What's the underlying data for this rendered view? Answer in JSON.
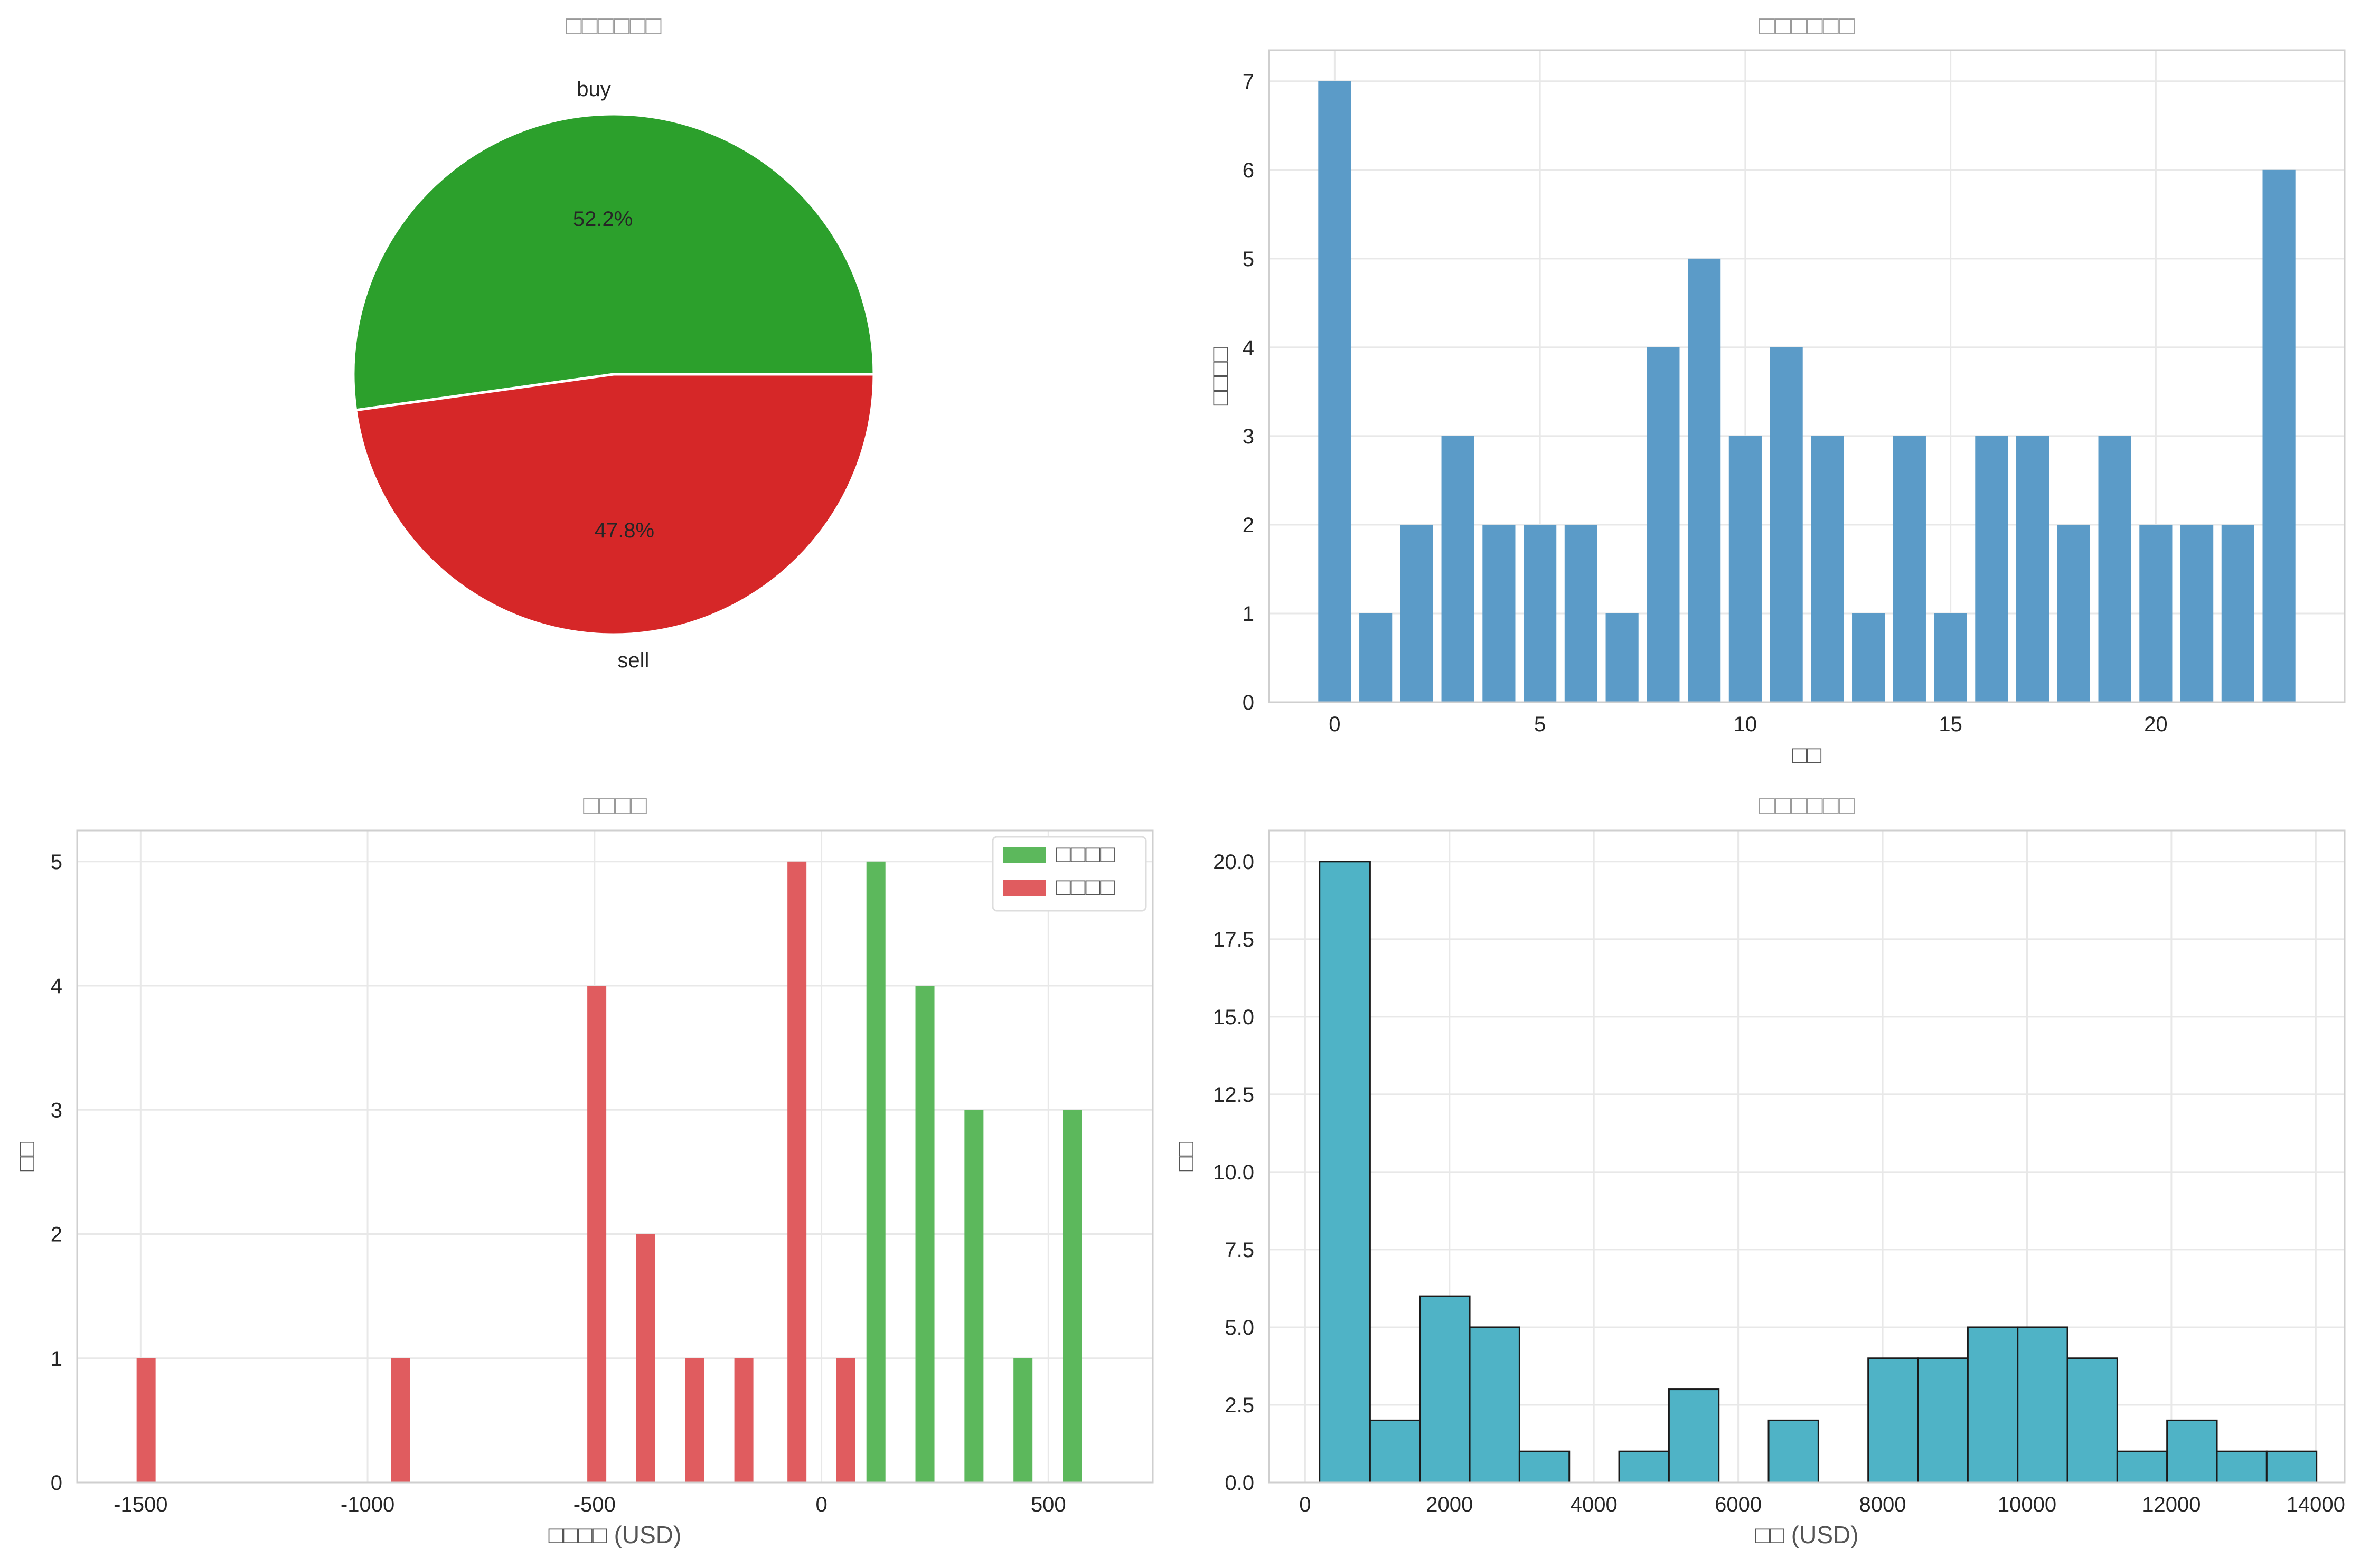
{
  "chart_data": [
    {
      "type": "pie",
      "title": "□□□□□□",
      "labels": [
        "buy",
        "sell"
      ],
      "values": [
        52.2,
        47.8
      ],
      "value_labels": [
        "52.2%",
        "47.8%"
      ],
      "colors": [
        "#2ca02c",
        "#d62728"
      ]
    },
    {
      "type": "bar",
      "title": "□□□□□□",
      "xlabel": "□□",
      "ylabel": "□□□□",
      "categories": [
        0,
        1,
        2,
        3,
        4,
        5,
        6,
        7,
        8,
        9,
        10,
        11,
        12,
        13,
        14,
        15,
        16,
        17,
        18,
        19,
        20,
        21,
        22,
        23
      ],
      "values": [
        7,
        1,
        2,
        3,
        2,
        2,
        2,
        1,
        4,
        5,
        3,
        4,
        3,
        1,
        3,
        1,
        3,
        3,
        2,
        3,
        2,
        2,
        2,
        6
      ],
      "xticks": [
        "0",
        "5",
        "10",
        "15",
        "20"
      ],
      "yticks": [
        "0",
        "1",
        "2",
        "3",
        "4",
        "5",
        "6",
        "7"
      ],
      "xlim": [
        -1.6,
        24.6
      ],
      "ylim": [
        0,
        7.35
      ],
      "color": "#5b9bc8",
      "grid": true
    },
    {
      "type": "bar",
      "title": "□□□□",
      "xlabel": "□□□□ (USD)",
      "ylabel": "□□",
      "legend_position": "top-right",
      "series": [
        {
          "name": "□□□□",
          "color": "#5cb85c",
          "x": [
            120,
            228,
            336,
            444,
            552
          ],
          "values": [
            5,
            4,
            3,
            1,
            3
          ]
        },
        {
          "name": "□□□□",
          "color": "#e05c5f",
          "x": [
            -1488,
            -927,
            -495,
            -387,
            -279,
            -171,
            -54,
            54
          ],
          "values": [
            1,
            1,
            4,
            2,
            1,
            1,
            5,
            1
          ]
        }
      ],
      "xticks": [
        "-1500",
        "-1000",
        "-500",
        "0",
        "500"
      ],
      "yticks": [
        "0",
        "1",
        "2",
        "3",
        "4",
        "5"
      ],
      "xlim": [
        -1640,
        730
      ],
      "ylim": [
        0,
        5.25
      ],
      "grid": true
    },
    {
      "type": "bar",
      "title": "□□□□□□",
      "xlabel": "□□ (USD)",
      "ylabel": "□□",
      "bins": [
        [
          200,
          900,
          20
        ],
        [
          900,
          1590,
          2
        ],
        [
          1590,
          2280,
          6
        ],
        [
          2280,
          2970,
          5
        ],
        [
          2970,
          3660,
          1
        ],
        [
          3660,
          4350,
          0
        ],
        [
          4350,
          5040,
          1
        ],
        [
          5040,
          5730,
          3
        ],
        [
          5730,
          6420,
          0
        ],
        [
          6420,
          7110,
          2
        ],
        [
          7110,
          7800,
          0
        ],
        [
          7800,
          8490,
          4
        ],
        [
          8490,
          9180,
          4
        ],
        [
          9180,
          9870,
          5
        ],
        [
          9870,
          10560,
          5
        ],
        [
          10560,
          11250,
          4
        ],
        [
          11250,
          11940,
          1
        ],
        [
          11940,
          12630,
          2
        ],
        [
          12630,
          13320,
          1
        ],
        [
          13320,
          14010,
          1
        ]
      ],
      "xticks": [
        "0",
        "2000",
        "4000",
        "6000",
        "8000",
        "10000",
        "12000",
        "14000"
      ],
      "yticks": [
        "0.0",
        "2.5",
        "5.0",
        "7.5",
        "10.0",
        "12.5",
        "15.0",
        "17.5",
        "20.0"
      ],
      "xlim": [
        -500,
        14400
      ],
      "ylim": [
        0,
        21
      ],
      "color": "#4fb3c6",
      "edge_color": "#1a1a1a",
      "grid": true
    }
  ]
}
